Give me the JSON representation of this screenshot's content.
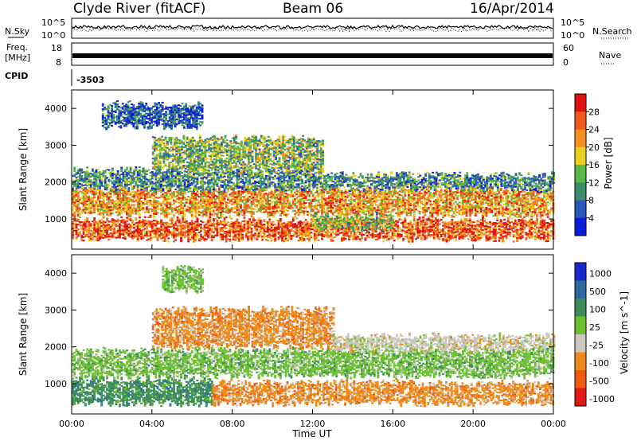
{
  "header": {
    "station": "Clyde River (fitACF)",
    "beam": "Beam 06",
    "date": "16/Apr/2014"
  },
  "summary_panels": {
    "nsky_label": "N.Sky",
    "nsky_ticks": [
      "10^5",
      "10^0"
    ],
    "nsearch_label": "N.Search",
    "freq_label_line1": "Freq.",
    "freq_label_line2": "[MHz]",
    "freq_left_ticks": [
      "18",
      "8"
    ],
    "nave_label": "Nave",
    "nave_right_ticks": [
      "60",
      "0"
    ],
    "cpid_label": "CPID",
    "cpid_value": "-3503"
  },
  "chart_data": [
    {
      "type": "heatmap",
      "name": "power",
      "xlabel": "Time UT",
      "ylabel": "Slant Range [km]",
      "colorbar_label": "Power [dB]",
      "x_ticks": [
        "00:00",
        "04:00",
        "08:00",
        "12:00",
        "16:00",
        "20:00",
        "00:00"
      ],
      "xlim_hours": [
        0,
        24
      ],
      "y_ticks": [
        "1000",
        "2000",
        "3000",
        "4000"
      ],
      "ylim": [
        180,
        4500
      ],
      "colorbar_ticks": [
        "4",
        "8",
        "12",
        "16",
        "20",
        "24",
        "28"
      ],
      "colorbar_range": [
        0,
        32
      ],
      "colors": [
        "#0a1cd8",
        "#2a58b8",
        "#3f8c6a",
        "#58b848",
        "#e8d020",
        "#f49020",
        "#ee5a1a",
        "#e01010"
      ],
      "echo_bands": [
        {
          "t_start": 0,
          "t_end": 24,
          "r_low": 450,
          "r_high": 950,
          "level": 26
        },
        {
          "t_start": 0,
          "t_end": 24,
          "r_low": 1100,
          "r_high": 1800,
          "level": 20
        },
        {
          "t_start": 0,
          "t_end": 12,
          "r_low": 1800,
          "r_high": 2300,
          "level": 10
        },
        {
          "t_start": 4,
          "t_end": 12.5,
          "r_low": 2300,
          "r_high": 3200,
          "level": 12
        },
        {
          "t_start": 1.5,
          "t_end": 6.5,
          "r_low": 3500,
          "r_high": 4100,
          "level": 6
        },
        {
          "t_start": 12,
          "t_end": 24,
          "r_low": 1800,
          "r_high": 2200,
          "level": 8
        },
        {
          "t_start": 12,
          "t_end": 16,
          "r_low": 700,
          "r_high": 1100,
          "level": 14
        }
      ]
    },
    {
      "type": "heatmap",
      "name": "velocity",
      "xlabel": "Time UT",
      "ylabel": "Slant Range [km]",
      "colorbar_label": "Velocity [m s^-1]",
      "x_ticks": [
        "00:00",
        "04:00",
        "08:00",
        "12:00",
        "16:00",
        "20:00",
        "00:00"
      ],
      "xlim_hours": [
        0,
        24
      ],
      "y_ticks": [
        "1000",
        "2000",
        "3000",
        "4000"
      ],
      "ylim": [
        180,
        4500
      ],
      "colorbar_ticks": [
        "1000",
        "500",
        "100",
        "25",
        "-25",
        "-100",
        "-500",
        "-1000"
      ],
      "colors": [
        "#1a2acc",
        "#2b6a9c",
        "#3c8c58",
        "#6cc030",
        "#c8c8c0",
        "#ee8a1a",
        "#ee5a10",
        "#e01a10"
      ],
      "echo_bands": [
        {
          "t_start": 0,
          "t_end": 7,
          "r_low": 450,
          "r_high": 1100,
          "category": "100"
        },
        {
          "t_start": 0,
          "t_end": 24,
          "r_low": 1200,
          "r_high": 1900,
          "category": "25"
        },
        {
          "t_start": 7,
          "t_end": 24,
          "r_low": 450,
          "r_high": 1000,
          "category": "-100"
        },
        {
          "t_start": 4,
          "t_end": 13,
          "r_low": 2000,
          "r_high": 3000,
          "category": "-100"
        },
        {
          "t_start": 13,
          "t_end": 24,
          "r_low": 1900,
          "r_high": 2300,
          "category": "-25"
        },
        {
          "t_start": 4.5,
          "t_end": 6.5,
          "r_low": 3500,
          "r_high": 4100,
          "category": "25"
        }
      ]
    }
  ]
}
